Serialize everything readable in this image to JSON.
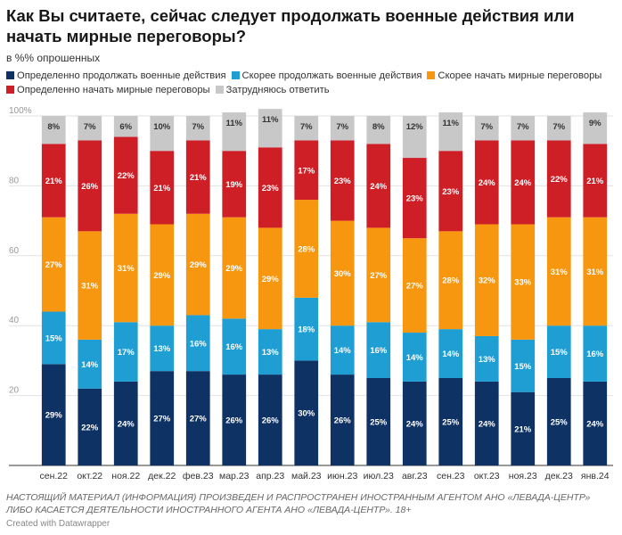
{
  "header": {
    "title": "Как Вы считаете, сейчас следует продолжать военные действия или начать мирные переговоры?",
    "subtitle": "в %% опрошенных"
  },
  "footer": {
    "note": "Настоящий материал (информация) произведен и распространен иностранным агентом АНО «Левада-Центр» либо касается деятельности иностранного агента АНО «Левада-Центр». 18+",
    "credit": "Created with Datawrapper"
  },
  "chart_data": {
    "type": "bar",
    "stacked": true,
    "categories": [
      "сен.22",
      "окт.22",
      "ноя.22",
      "дек.22",
      "фев.23",
      "мар.23",
      "апр.23",
      "май.23",
      "июн.23",
      "июл.23",
      "авг.23",
      "сен.23",
      "окт.23",
      "ноя.23",
      "дек.23",
      "янв.24"
    ],
    "ylim": [
      0,
      100
    ],
    "yticks": [
      20,
      40,
      60,
      80,
      100
    ],
    "ytick_labels": [
      "20",
      "40",
      "60",
      "80",
      "100%"
    ],
    "grid": true,
    "legend_position": "top",
    "series": [
      {
        "name": "Определенно продолжать военные действия",
        "color": "#0f3264",
        "values": [
          29,
          22,
          24,
          27,
          27,
          26,
          26,
          30,
          26,
          25,
          24,
          25,
          24,
          21,
          25,
          24
        ]
      },
      {
        "name": "Скорее продолжать военные действия",
        "color": "#1f9ed3",
        "values": [
          15,
          14,
          17,
          13,
          16,
          16,
          13,
          18,
          14,
          16,
          14,
          14,
          13,
          15,
          15,
          16
        ]
      },
      {
        "name": "Скорее начать мирные переговоры",
        "color": "#f7960f",
        "values": [
          27,
          31,
          31,
          29,
          29,
          29,
          29,
          28,
          30,
          27,
          27,
          28,
          32,
          33,
          31,
          31
        ]
      },
      {
        "name": "Определенно начать мирные переговоры",
        "color": "#cf1f26",
        "values": [
          21,
          26,
          22,
          21,
          21,
          19,
          23,
          17,
          23,
          24,
          23,
          23,
          24,
          24,
          22,
          21
        ]
      },
      {
        "name": "Затрудняюсь ответить",
        "color": "#c8c8c8",
        "values": [
          8,
          7,
          6,
          10,
          7,
          11,
          11,
          7,
          7,
          8,
          12,
          11,
          7,
          7,
          7,
          9
        ]
      }
    ]
  }
}
